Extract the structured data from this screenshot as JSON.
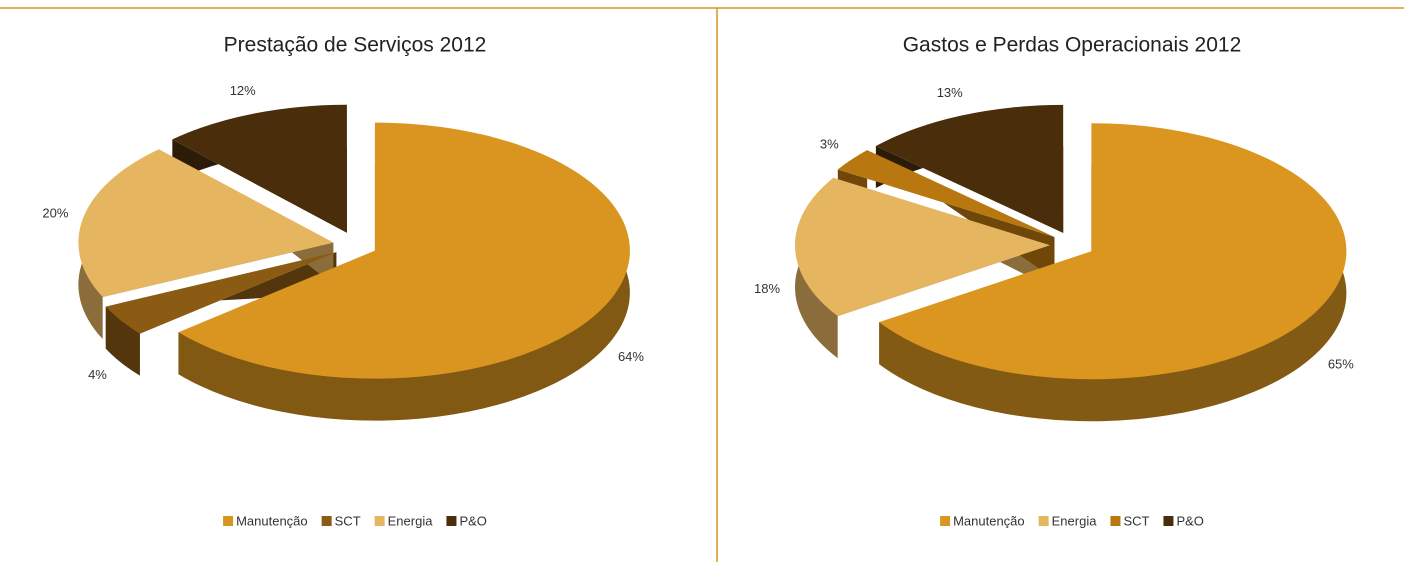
{
  "chart_data": [
    {
      "type": "pie",
      "title": "Prestação de Serviços 2012",
      "categories": [
        "Manutenção",
        "SCT",
        "Energia",
        "P&O"
      ],
      "values": [
        64,
        4,
        20,
        12
      ],
      "value_labels": [
        "64%",
        "4%",
        "20%",
        "12%"
      ],
      "colors": [
        "#d9951f",
        "#8b5a13",
        "#e6b560",
        "#4a2e0c"
      ],
      "legend": "bottom"
    },
    {
      "type": "pie",
      "title": "Gastos e Perdas Operacionais 2012",
      "categories": [
        "Manutenção",
        "Energia",
        "SCT",
        "P&O"
      ],
      "values": [
        65,
        18,
        3,
        13
      ],
      "value_labels": [
        "65%",
        "18%",
        "3%",
        "13%"
      ],
      "colors": [
        "#db961f",
        "#e6b560",
        "#b9780f",
        "#4a2e0c"
      ],
      "legend": "bottom"
    }
  ]
}
